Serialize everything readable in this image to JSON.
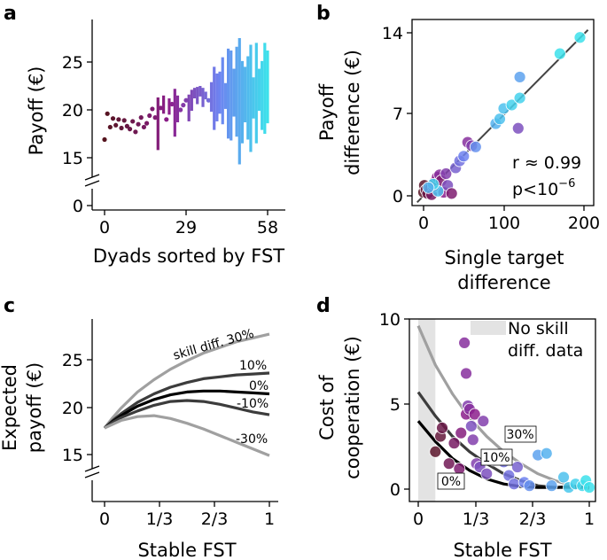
{
  "panels": {
    "a": {
      "panel_label": "a",
      "ylabel": "Payoff (€)",
      "xlabel": "Dyads sorted by FST",
      "yticks": [
        "15",
        "20",
        "25",
        "0"
      ],
      "xticks": [
        "0",
        "29",
        "58"
      ]
    },
    "b": {
      "panel_label": "b",
      "ylabel_line1": "Payoff",
      "ylabel_line2": "difference (€)",
      "xlabel_line1": "Single target",
      "xlabel_line2": "difference",
      "yticks": [
        "0",
        "7",
        "14"
      ],
      "xticks": [
        "0",
        "100",
        "200"
      ],
      "stat_r": "r ≈ 0.99",
      "stat_p_base": "p<10",
      "stat_p_exp": "−6"
    },
    "c": {
      "panel_label": "c",
      "ylabel_line1": "Expected",
      "ylabel_line2": "payoff (€)",
      "xlabel": "Stable FST",
      "yticks": [
        "15",
        "20",
        "25"
      ],
      "xticks": [
        "0",
        "1/3",
        "2/3",
        "1"
      ],
      "curve_labels": [
        "skill diff. 30%",
        "10%",
        "0%",
        "-10%",
        "-30%"
      ]
    },
    "d": {
      "panel_label": "d",
      "ylabel_line1": "Cost of",
      "ylabel_line2": "cooperation (€)",
      "xlabel": "Stable FST",
      "yticks": [
        "0",
        "5",
        "10"
      ],
      "xticks": [
        "0",
        "1/3",
        "2/3",
        "1"
      ],
      "legend_line1": "No skill",
      "legend_line2": "diff. data",
      "curve_labels": [
        "30%",
        "10%",
        "0%"
      ]
    }
  },
  "chart_data": [
    {
      "type": "scatter",
      "panel": "a",
      "title": "",
      "xlabel": "Dyads sorted by FST",
      "ylabel": "Payoff (€)",
      "xlim": [
        -1,
        59
      ],
      "ylim": [
        13,
        28.5
      ],
      "description_of_marks": "dots for dyads with near-equal payoffs, vertical segments spanning the two members' payoffs; color from dark brown (low FST) through purple to cyan (high FST)",
      "dyads": [
        {
          "x": 0,
          "lo": 16.9,
          "hi": 16.9
        },
        {
          "x": 1,
          "lo": 19.6,
          "hi": 19.6
        },
        {
          "x": 2,
          "lo": 18.2,
          "hi": 18.2
        },
        {
          "x": 3,
          "lo": 19.1,
          "hi": 19.1
        },
        {
          "x": 4,
          "lo": 18.4,
          "hi": 18.4
        },
        {
          "x": 5,
          "lo": 19.0,
          "hi": 19.0
        },
        {
          "x": 6,
          "lo": 18.1,
          "hi": 18.1
        },
        {
          "x": 7,
          "lo": 18.9,
          "hi": 18.9
        },
        {
          "x": 8,
          "lo": 18.3,
          "hi": 18.3
        },
        {
          "x": 9,
          "lo": 18.0,
          "hi": 18.0
        },
        {
          "x": 10,
          "lo": 18.8,
          "hi": 18.8
        },
        {
          "x": 11,
          "lo": 17.7,
          "hi": 17.7
        },
        {
          "x": 12,
          "lo": 18.5,
          "hi": 18.5
        },
        {
          "x": 13,
          "lo": 19.2,
          "hi": 19.2
        },
        {
          "x": 14,
          "lo": 18.2,
          "hi": 18.2
        },
        {
          "x": 15,
          "lo": 18.6,
          "hi": 18.6
        },
        {
          "x": 16,
          "lo": 19.4,
          "hi": 19.4
        },
        {
          "x": 17,
          "lo": 20.1,
          "hi": 20.1
        },
        {
          "x": 18,
          "lo": 19.2,
          "hi": 19.2
        },
        {
          "x": 19,
          "lo": 15.8,
          "hi": 21.3
        },
        {
          "x": 20,
          "lo": 20.2,
          "hi": 20.2
        },
        {
          "x": 21,
          "lo": 19.6,
          "hi": 21.5
        },
        {
          "x": 22,
          "lo": 19.0,
          "hi": 19.0
        },
        {
          "x": 23,
          "lo": 19.5,
          "hi": 21.2
        },
        {
          "x": 24,
          "lo": 20.6,
          "hi": 20.6
        },
        {
          "x": 25,
          "lo": 17.2,
          "hi": 22.2
        },
        {
          "x": 26,
          "lo": 18.7,
          "hi": 21.5
        },
        {
          "x": 27,
          "lo": 20.0,
          "hi": 20.0
        },
        {
          "x": 28,
          "lo": 20.5,
          "hi": 20.5
        },
        {
          "x": 29,
          "lo": 21.0,
          "hi": 21.0
        },
        {
          "x": 30,
          "lo": 18.8,
          "hi": 21.6
        },
        {
          "x": 31,
          "lo": 19.9,
          "hi": 22.1
        },
        {
          "x": 32,
          "lo": 21.2,
          "hi": 22.3
        },
        {
          "x": 33,
          "lo": 20.6,
          "hi": 22.4
        },
        {
          "x": 34,
          "lo": 21.4,
          "hi": 22.5
        },
        {
          "x": 35,
          "lo": 20.3,
          "hi": 22.3
        },
        {
          "x": 36,
          "lo": 21.1,
          "hi": 21.9
        },
        {
          "x": 37,
          "lo": 21.0,
          "hi": 21.0
        },
        {
          "x": 38,
          "lo": 19.8,
          "hi": 22.9
        },
        {
          "x": 39,
          "lo": 17.9,
          "hi": 24.5
        },
        {
          "x": 40,
          "lo": 18.8,
          "hi": 23.8
        },
        {
          "x": 41,
          "lo": 19.6,
          "hi": 24.0
        },
        {
          "x": 42,
          "lo": 18.5,
          "hi": 25.5
        },
        {
          "x": 43,
          "lo": 20.1,
          "hi": 22.8
        },
        {
          "x": 44,
          "lo": 17.0,
          "hi": 26.4
        },
        {
          "x": 45,
          "lo": 16.8,
          "hi": 26.2
        },
        {
          "x": 46,
          "lo": 19.3,
          "hi": 24.3
        },
        {
          "x": 47,
          "lo": 17.2,
          "hi": 26.6
        },
        {
          "x": 48,
          "lo": 14.3,
          "hi": 27.5
        },
        {
          "x": 49,
          "lo": 16.5,
          "hi": 25.1
        },
        {
          "x": 50,
          "lo": 18.7,
          "hi": 24.5
        },
        {
          "x": 51,
          "lo": 16.9,
          "hi": 25.6
        },
        {
          "x": 52,
          "lo": 15.6,
          "hi": 26.8
        },
        {
          "x": 53,
          "lo": 19.1,
          "hi": 23.4
        },
        {
          "x": 54,
          "lo": 16.5,
          "hi": 27.0
        },
        {
          "x": 55,
          "lo": 19.9,
          "hi": 24.3
        },
        {
          "x": 56,
          "lo": 17.9,
          "hi": 25.1
        },
        {
          "x": 57,
          "lo": 17.5,
          "hi": 27.0
        },
        {
          "x": 58,
          "lo": 18.6,
          "hi": 26.2
        }
      ]
    },
    {
      "type": "scatter",
      "panel": "b",
      "xlabel": "Single target difference",
      "ylabel": "Payoff difference (€)",
      "xlim": [
        -8,
        205
      ],
      "ylim": [
        -0.5,
        14.5
      ],
      "fit_line": {
        "slope": 0.0695,
        "intercept": 0
      },
      "points": [
        {
          "x": 0,
          "y": 0.3,
          "t": 0.02
        },
        {
          "x": 1,
          "y": 0.9,
          "t": 0.05
        },
        {
          "x": 3,
          "y": 0.5,
          "t": 0.1
        },
        {
          "x": 5,
          "y": 0.2,
          "t": 0.15
        },
        {
          "x": 8,
          "y": 0.6,
          "t": 0.2
        },
        {
          "x": 10,
          "y": 0.1,
          "t": 0.25
        },
        {
          "x": 12,
          "y": 0.8,
          "t": 0.3
        },
        {
          "x": 14,
          "y": 1.2,
          "t": 0.35
        },
        {
          "x": 17,
          "y": 1.6,
          "t": 0.4
        },
        {
          "x": 20,
          "y": 1.8,
          "t": 0.45
        },
        {
          "x": 22,
          "y": 1.3,
          "t": 0.3
        },
        {
          "x": 25,
          "y": 0.3,
          "t": 0.4
        },
        {
          "x": 28,
          "y": 1.9,
          "t": 0.5
        },
        {
          "x": 30,
          "y": 0.9,
          "t": 0.55
        },
        {
          "x": 35,
          "y": 0.2,
          "t": 0.3
        },
        {
          "x": 40,
          "y": 2.4,
          "t": 0.6
        },
        {
          "x": 45,
          "y": 3.0,
          "t": 0.65
        },
        {
          "x": 50,
          "y": 3.4,
          "t": 0.7
        },
        {
          "x": 55,
          "y": 4.6,
          "t": 0.45
        },
        {
          "x": 60,
          "y": 4.3,
          "t": 0.5
        },
        {
          "x": 65,
          "y": 4.2,
          "t": 0.75
        },
        {
          "x": 90,
          "y": 6.2,
          "t": 0.85
        },
        {
          "x": 95,
          "y": 6.6,
          "t": 0.9
        },
        {
          "x": 100,
          "y": 7.5,
          "t": 0.9
        },
        {
          "x": 110,
          "y": 7.8,
          "t": 0.95
        },
        {
          "x": 120,
          "y": 8.4,
          "t": 0.95
        },
        {
          "x": 118,
          "y": 5.8,
          "t": 0.55
        },
        {
          "x": 120,
          "y": 10.2,
          "t": 0.8
        },
        {
          "x": 170,
          "y": 12.2,
          "t": 1.0
        },
        {
          "x": 195,
          "y": 13.6,
          "t": 1.0
        },
        {
          "x": 18,
          "y": 0.4,
          "t": 0.9
        },
        {
          "x": 12,
          "y": 1.0,
          "t": 0.95
        },
        {
          "x": 6,
          "y": 0.7,
          "t": 0.85
        }
      ]
    },
    {
      "type": "line",
      "panel": "c",
      "xlabel": "Stable FST",
      "ylabel": "Expected payoff (€)",
      "xlim": [
        -0.05,
        1.03
      ],
      "ylim": [
        13.5,
        28.5
      ],
      "series": [
        {
          "name": "skill diff. 30%",
          "color": "#a0a0a0",
          "x": [
            0,
            0.05,
            0.1,
            0.2,
            0.3,
            0.4,
            0.5,
            0.6,
            0.7,
            0.8,
            0.9,
            1.0
          ],
          "values": [
            17.8,
            18.9,
            19.9,
            21.6,
            22.9,
            24.0,
            24.9,
            25.7,
            26.3,
            26.9,
            27.3,
            27.7
          ]
        },
        {
          "name": "10%",
          "color": "#3c3c3c",
          "x": [
            0,
            0.05,
            0.1,
            0.2,
            0.3,
            0.4,
            0.5,
            0.6,
            0.7,
            0.8,
            0.9,
            1.0
          ],
          "values": [
            17.8,
            18.6,
            19.3,
            20.5,
            21.4,
            22.1,
            22.6,
            23.0,
            23.2,
            23.4,
            23.5,
            23.6
          ]
        },
        {
          "name": "0%",
          "color": "#000000",
          "x": [
            0,
            0.05,
            0.1,
            0.2,
            0.3,
            0.4,
            0.5,
            0.6,
            0.7,
            0.8,
            0.9,
            1.0
          ],
          "values": [
            17.8,
            18.5,
            19.1,
            20.1,
            20.8,
            21.3,
            21.6,
            21.7,
            21.7,
            21.6,
            21.5,
            21.4
          ]
        },
        {
          "name": "-10%",
          "color": "#3c3c3c",
          "x": [
            0,
            0.05,
            0.1,
            0.2,
            0.3,
            0.4,
            0.5,
            0.6,
            0.7,
            0.8,
            0.9,
            1.0
          ],
          "values": [
            17.8,
            18.4,
            18.9,
            19.6,
            20.2,
            20.6,
            20.7,
            20.6,
            20.3,
            19.9,
            19.5,
            19.2
          ]
        },
        {
          "name": "-30%",
          "color": "#a0a0a0",
          "x": [
            0,
            0.05,
            0.1,
            0.2,
            0.3,
            0.4,
            0.5,
            0.6,
            0.7,
            0.8,
            0.9,
            1.0
          ],
          "values": [
            17.8,
            18.2,
            18.6,
            19.0,
            19.1,
            18.8,
            18.3,
            17.7,
            17.0,
            16.3,
            15.6,
            14.9
          ]
        }
      ]
    },
    {
      "type": "scatter",
      "panel": "d",
      "xlabel": "Stable FST",
      "ylabel": "Cost of cooperation (€)",
      "xlim": [
        -0.05,
        1.02
      ],
      "ylim": [
        -0.5,
        10.3
      ],
      "shaded_region_x": [
        0,
        0.1
      ],
      "legend": "top-right",
      "series": [
        {
          "name": "30%",
          "color": "#a0a0a0",
          "x": [
            0,
            0.1,
            0.2,
            0.3,
            0.4,
            0.5,
            0.6,
            0.7,
            0.8,
            0.9,
            1.0
          ],
          "values": [
            9.6,
            7.3,
            5.6,
            4.2,
            3.1,
            2.2,
            1.5,
            0.9,
            0.5,
            0.2,
            0.0
          ]
        },
        {
          "name": "10%",
          "color": "#3c3c3c",
          "x": [
            0,
            0.1,
            0.2,
            0.3,
            0.4,
            0.5,
            0.6,
            0.7,
            0.8,
            0.9,
            1.0
          ],
          "values": [
            5.7,
            4.3,
            3.1,
            2.2,
            1.5,
            0.9,
            0.5,
            0.2,
            0.1,
            0.1,
            0.1
          ]
        },
        {
          "name": "0%",
          "color": "#000000",
          "x": [
            0,
            0.1,
            0.2,
            0.3,
            0.4,
            0.5,
            0.6,
            0.7,
            0.8,
            0.9,
            1.0
          ],
          "values": [
            4.0,
            2.8,
            1.8,
            1.1,
            0.6,
            0.3,
            0.15,
            0.1,
            0.1,
            0.15,
            0.2
          ]
        }
      ],
      "points": [
        {
          "x": 0.1,
          "y": 2.2,
          "t": 0.05
        },
        {
          "x": 0.13,
          "y": 3.1,
          "t": 0.1
        },
        {
          "x": 0.14,
          "y": 3.6,
          "t": 0.15
        },
        {
          "x": 0.18,
          "y": 1.5,
          "t": 0.2
        },
        {
          "x": 0.21,
          "y": 2.7,
          "t": 0.25
        },
        {
          "x": 0.24,
          "y": 1.2,
          "t": 0.3
        },
        {
          "x": 0.25,
          "y": 3.3,
          "t": 0.35
        },
        {
          "x": 0.27,
          "y": 8.6,
          "t": 0.45
        },
        {
          "x": 0.28,
          "y": 6.8,
          "t": 0.45
        },
        {
          "x": 0.28,
          "y": 4.4,
          "t": 0.4
        },
        {
          "x": 0.29,
          "y": 4.9,
          "t": 0.5
        },
        {
          "x": 0.3,
          "y": 4.7,
          "t": 0.45
        },
        {
          "x": 0.31,
          "y": 3.7,
          "t": 0.55
        },
        {
          "x": 0.32,
          "y": 2.9,
          "t": 0.5
        },
        {
          "x": 0.33,
          "y": 4.4,
          "t": 0.4
        },
        {
          "x": 0.34,
          "y": 1.5,
          "t": 0.5
        },
        {
          "x": 0.36,
          "y": 1.3,
          "t": 0.55
        },
        {
          "x": 0.38,
          "y": 4.0,
          "t": 0.5
        },
        {
          "x": 0.4,
          "y": 0.9,
          "t": 0.55
        },
        {
          "x": 0.44,
          "y": 1.7,
          "t": 0.6
        },
        {
          "x": 0.47,
          "y": 1.9,
          "t": 0.6
        },
        {
          "x": 0.5,
          "y": 1.6,
          "t": 0.65
        },
        {
          "x": 0.53,
          "y": 0.8,
          "t": 0.65
        },
        {
          "x": 0.56,
          "y": 0.3,
          "t": 0.65
        },
        {
          "x": 0.58,
          "y": 1.3,
          "t": 0.6
        },
        {
          "x": 0.62,
          "y": 0.4,
          "t": 0.7
        },
        {
          "x": 0.65,
          "y": 0.2,
          "t": 0.75
        },
        {
          "x": 0.7,
          "y": 2.0,
          "t": 0.8
        },
        {
          "x": 0.75,
          "y": 2.1,
          "t": 0.85
        },
        {
          "x": 0.78,
          "y": 0.2,
          "t": 0.8
        },
        {
          "x": 0.85,
          "y": 0.7,
          "t": 0.9
        },
        {
          "x": 0.88,
          "y": 0.1,
          "t": 0.92
        },
        {
          "x": 0.92,
          "y": 0.3,
          "t": 0.95
        },
        {
          "x": 0.96,
          "y": 0.2,
          "t": 0.97
        },
        {
          "x": 0.98,
          "y": 0.5,
          "t": 1.0
        },
        {
          "x": 1.0,
          "y": 0.1,
          "t": 1.0
        }
      ]
    }
  ]
}
